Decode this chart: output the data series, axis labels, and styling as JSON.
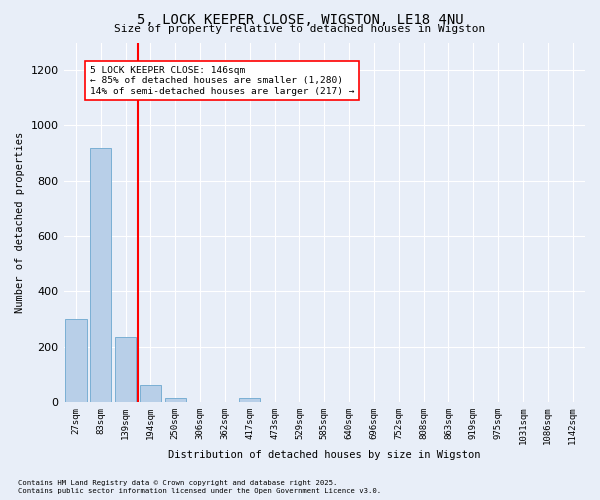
{
  "title1": "5, LOCK KEEPER CLOSE, WIGSTON, LE18 4NU",
  "title2": "Size of property relative to detached houses in Wigston",
  "xlabel": "Distribution of detached houses by size in Wigston",
  "ylabel": "Number of detached properties",
  "categories": [
    "27sqm",
    "83sqm",
    "139sqm",
    "194sqm",
    "250sqm",
    "306sqm",
    "362sqm",
    "417sqm",
    "473sqm",
    "529sqm",
    "585sqm",
    "640sqm",
    "696sqm",
    "752sqm",
    "808sqm",
    "863sqm",
    "919sqm",
    "975sqm",
    "1031sqm",
    "1086sqm",
    "1142sqm"
  ],
  "values": [
    300,
    920,
    235,
    60,
    15,
    0,
    0,
    15,
    0,
    0,
    0,
    0,
    0,
    0,
    0,
    0,
    0,
    0,
    0,
    0,
    0
  ],
  "bar_color": "#b8cfe8",
  "bar_edge_color": "#7aafd4",
  "red_line_x": 2.5,
  "ylim": [
    0,
    1300
  ],
  "yticks": [
    0,
    200,
    400,
    600,
    800,
    1000,
    1200
  ],
  "annotation_title": "5 LOCK KEEPER CLOSE: 146sqm",
  "annotation_line1": "← 85% of detached houses are smaller (1,280)",
  "annotation_line2": "14% of semi-detached houses are larger (217) →",
  "footnote1": "Contains HM Land Registry data © Crown copyright and database right 2025.",
  "footnote2": "Contains public sector information licensed under the Open Government Licence v3.0.",
  "bg_color": "#e8eef8",
  "plot_bg_color": "#e8eef8"
}
